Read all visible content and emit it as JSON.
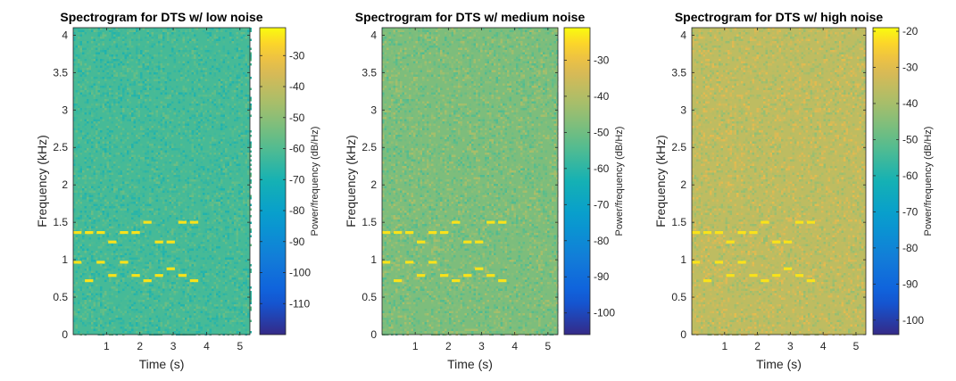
{
  "figure": {
    "panels": [
      {
        "title": "Spectrogram for DTS w/ low noise",
        "xlabel": "Time (s)",
        "ylabel": "Frequency (kHz)",
        "colorbar_label": "Power/frequency (dB/Hz)",
        "colorbar_ticks": [
          "-30",
          "-40",
          "-50",
          "-60",
          "-70",
          "-80",
          "-90",
          "-100",
          "-110"
        ]
      },
      {
        "title": "Spectrogram for DTS w/ medium noise",
        "xlabel": "Time (s)",
        "ylabel": "Frequency (kHz)",
        "colorbar_label": "Power/frequency (dB/Hz)",
        "colorbar_ticks": [
          "-30",
          "-40",
          "-50",
          "-60",
          "-70",
          "-80",
          "-90",
          "-100"
        ]
      },
      {
        "title": "Spectrogram for DTS w/ high noise",
        "xlabel": "Time (s)",
        "ylabel": "Frequency (kHz)",
        "colorbar_label": "Power/frequency (dB/Hz)",
        "colorbar_ticks": [
          "-20",
          "-30",
          "-40",
          "-50",
          "-60",
          "-70",
          "-80",
          "-90",
          "-100"
        ]
      }
    ]
  },
  "colors": {
    "tone": "#f9e21a",
    "background_low": "#3bb08f",
    "background_medium": "#9ab665",
    "background_high": "#d4b347"
  },
  "chart_data": [
    {
      "type": "heatmap",
      "title": "Spectrogram for DTS w/ low noise",
      "xlabel": "Time (s)",
      "ylabel": "Frequency (kHz)",
      "xlim": [
        0,
        5.3
      ],
      "ylim": [
        0,
        4.1
      ],
      "xticks": [
        1,
        2,
        3,
        4,
        5
      ],
      "yticks": [
        0,
        0.5,
        1,
        1.5,
        2,
        2.5,
        3,
        3.5,
        4
      ],
      "colorbar": {
        "label": "Power/frequency (dB/Hz)",
        "range": [
          -120,
          -21
        ],
        "ticks": [
          -30,
          -40,
          -50,
          -60,
          -70,
          -80,
          -90,
          -100,
          -110
        ]
      },
      "noise_floor_db": -62,
      "tones": [
        {
          "t_start": 0.0,
          "t_end": 0.25,
          "freqs_khz": [
            1.364,
            0.967
          ]
        },
        {
          "t_start": 0.35,
          "t_end": 0.6,
          "freqs_khz": [
            1.364,
            0.72
          ]
        },
        {
          "t_start": 0.7,
          "t_end": 0.95,
          "freqs_khz": [
            1.364,
            0.967
          ]
        },
        {
          "t_start": 1.05,
          "t_end": 1.3,
          "freqs_khz": [
            1.237,
            0.79
          ]
        },
        {
          "t_start": 1.4,
          "t_end": 1.65,
          "freqs_khz": [
            1.364,
            0.967
          ]
        },
        {
          "t_start": 1.75,
          "t_end": 2.0,
          "freqs_khz": [
            1.364,
            0.79
          ]
        },
        {
          "t_start": 2.1,
          "t_end": 2.35,
          "freqs_khz": [
            1.5,
            0.72
          ]
        },
        {
          "t_start": 2.45,
          "t_end": 2.7,
          "freqs_khz": [
            1.237,
            0.79
          ]
        },
        {
          "t_start": 2.8,
          "t_end": 3.05,
          "freqs_khz": [
            1.237,
            0.88
          ]
        },
        {
          "t_start": 3.15,
          "t_end": 3.4,
          "freqs_khz": [
            1.5,
            0.79
          ]
        },
        {
          "t_start": 3.5,
          "t_end": 3.75,
          "freqs_khz": [
            1.5,
            0.72
          ]
        }
      ]
    },
    {
      "type": "heatmap",
      "title": "Spectrogram for DTS w/ medium noise",
      "xlabel": "Time (s)",
      "ylabel": "Frequency (kHz)",
      "xlim": [
        0,
        5.3
      ],
      "ylim": [
        0,
        4.1
      ],
      "xticks": [
        1,
        2,
        3,
        4,
        5
      ],
      "yticks": [
        0,
        0.5,
        1,
        1.5,
        2,
        2.5,
        3,
        3.5,
        4
      ],
      "colorbar": {
        "label": "Power/frequency (dB/Hz)",
        "range": [
          -106,
          -21
        ],
        "ticks": [
          -30,
          -40,
          -50,
          -60,
          -70,
          -80,
          -90,
          -100
        ]
      },
      "noise_floor_db": -48,
      "tones": [
        {
          "t_start": 0.0,
          "t_end": 0.25,
          "freqs_khz": [
            1.364,
            0.967
          ]
        },
        {
          "t_start": 0.35,
          "t_end": 0.6,
          "freqs_khz": [
            1.364,
            0.72
          ]
        },
        {
          "t_start": 0.7,
          "t_end": 0.95,
          "freqs_khz": [
            1.364,
            0.967
          ]
        },
        {
          "t_start": 1.05,
          "t_end": 1.3,
          "freqs_khz": [
            1.237,
            0.79
          ]
        },
        {
          "t_start": 1.4,
          "t_end": 1.65,
          "freqs_khz": [
            1.364,
            0.967
          ]
        },
        {
          "t_start": 1.75,
          "t_end": 2.0,
          "freqs_khz": [
            1.364,
            0.79
          ]
        },
        {
          "t_start": 2.1,
          "t_end": 2.35,
          "freqs_khz": [
            1.5,
            0.72
          ]
        },
        {
          "t_start": 2.45,
          "t_end": 2.7,
          "freqs_khz": [
            1.237,
            0.79
          ]
        },
        {
          "t_start": 2.8,
          "t_end": 3.05,
          "freqs_khz": [
            1.237,
            0.88
          ]
        },
        {
          "t_start": 3.15,
          "t_end": 3.4,
          "freqs_khz": [
            1.5,
            0.79
          ]
        },
        {
          "t_start": 3.5,
          "t_end": 3.75,
          "freqs_khz": [
            1.5,
            0.72
          ]
        }
      ]
    },
    {
      "type": "heatmap",
      "title": "Spectrogram for DTS w/ high noise",
      "xlabel": "Time (s)",
      "ylabel": "Frequency (kHz)",
      "xlim": [
        0,
        5.3
      ],
      "ylim": [
        0,
        4.1
      ],
      "xticks": [
        1,
        2,
        3,
        4,
        5
      ],
      "yticks": [
        0,
        0.5,
        1,
        1.5,
        2,
        2.5,
        3,
        3.5,
        4
      ],
      "colorbar": {
        "label": "Power/frequency (dB/Hz)",
        "range": [
          -104,
          -19
        ],
        "ticks": [
          -20,
          -30,
          -40,
          -50,
          -60,
          -70,
          -80,
          -90,
          -100
        ]
      },
      "noise_floor_db": -36,
      "tones": [
        {
          "t_start": 0.0,
          "t_end": 0.25,
          "freqs_khz": [
            1.364,
            0.967
          ]
        },
        {
          "t_start": 0.35,
          "t_end": 0.6,
          "freqs_khz": [
            1.364,
            0.72
          ]
        },
        {
          "t_start": 0.7,
          "t_end": 0.95,
          "freqs_khz": [
            1.364,
            0.967
          ]
        },
        {
          "t_start": 1.05,
          "t_end": 1.3,
          "freqs_khz": [
            1.237,
            0.79
          ]
        },
        {
          "t_start": 1.4,
          "t_end": 1.65,
          "freqs_khz": [
            1.364,
            0.967
          ]
        },
        {
          "t_start": 1.75,
          "t_end": 2.0,
          "freqs_khz": [
            1.364,
            0.79
          ]
        },
        {
          "t_start": 2.1,
          "t_end": 2.35,
          "freqs_khz": [
            1.5,
            0.72
          ]
        },
        {
          "t_start": 2.45,
          "t_end": 2.7,
          "freqs_khz": [
            1.237,
            0.79
          ]
        },
        {
          "t_start": 2.8,
          "t_end": 3.05,
          "freqs_khz": [
            1.237,
            0.88
          ]
        },
        {
          "t_start": 3.15,
          "t_end": 3.4,
          "freqs_khz": [
            1.5,
            0.79
          ]
        },
        {
          "t_start": 3.5,
          "t_end": 3.75,
          "freqs_khz": [
            1.5,
            0.72
          ]
        }
      ]
    }
  ]
}
